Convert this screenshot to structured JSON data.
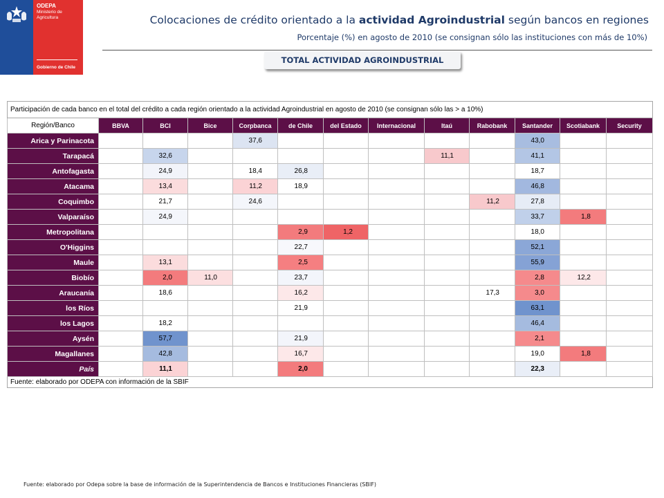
{
  "logo": {
    "name": "ODEPA",
    "ministry": "Ministerio de Agricultura",
    "government": "Gobierno de Chile"
  },
  "header": {
    "title_pre": "Colocaciones de crédito orientado a la ",
    "title_bold": "actividad Agroindustrial",
    "title_post": " según bancos en regiones",
    "subtitle": "Porcentaje (%) en agosto de 2010 (se consignan sólo las instituciones con más de 10%)",
    "tab": "TOTAL ACTIVIDAD AGROINDUSTRIAL"
  },
  "table": {
    "caption": "Participación de cada banco en el total del crédito a cada región orientado a la actividad Agroindustrial en agosto de 2010 (se consignan sólo las > a 10%)",
    "corner": "Región/Banco",
    "columns": [
      "BBVA",
      "BCI",
      "Bice",
      "Corpbanca",
      "de Chile",
      "del Estado",
      "Internacional",
      "Itaú",
      "Rabobank",
      "Santander",
      "Scotiabank",
      "Security"
    ],
    "rows": [
      {
        "region": "Arica y Parinacota",
        "values": [
          "",
          "",
          "",
          "37,6",
          "",
          "",
          "",
          "",
          "",
          "43,0",
          "",
          ""
        ]
      },
      {
        "region": "Tarapacá",
        "values": [
          "",
          "32,6",
          "",
          "",
          "",
          "",
          "",
          "11,1",
          "",
          "41,1",
          "",
          ""
        ]
      },
      {
        "region": "Antofagasta",
        "values": [
          "",
          "24,9",
          "",
          "18,4",
          "26,8",
          "",
          "",
          "",
          "",
          "18,7",
          "",
          ""
        ]
      },
      {
        "region": "Atacama",
        "values": [
          "",
          "13,4",
          "",
          "11,2",
          "18,9",
          "",
          "",
          "",
          "",
          "46,8",
          "",
          ""
        ]
      },
      {
        "region": "Coquimbo",
        "values": [
          "",
          "21,7",
          "",
          "24,6",
          "",
          "",
          "",
          "",
          "11,2",
          "27,8",
          "",
          ""
        ]
      },
      {
        "region": "Valparaíso",
        "values": [
          "",
          "24,9",
          "",
          "",
          "",
          "",
          "",
          "",
          "",
          "33,7",
          "1,8",
          ""
        ]
      },
      {
        "region": "Metropolitana",
        "values": [
          "",
          "",
          "",
          "",
          "2,9",
          "1,2",
          "",
          "",
          "",
          "18,0",
          "",
          ""
        ]
      },
      {
        "region": "O'Higgins",
        "values": [
          "",
          "",
          "",
          "",
          "22,7",
          "",
          "",
          "",
          "",
          "52,1",
          "",
          ""
        ]
      },
      {
        "region": "Maule",
        "values": [
          "",
          "13,1",
          "",
          "",
          "2,5",
          "",
          "",
          "",
          "",
          "55,9",
          "",
          ""
        ]
      },
      {
        "region": "Biobío",
        "values": [
          "",
          "2,0",
          "11,0",
          "",
          "23,7",
          "",
          "",
          "",
          "",
          "2,8",
          "12,2",
          ""
        ]
      },
      {
        "region": "Araucanía",
        "values": [
          "",
          "18,6",
          "",
          "",
          "16,2",
          "",
          "",
          "",
          "17,3",
          "3,0",
          "",
          ""
        ]
      },
      {
        "region": "los Ríos",
        "values": [
          "",
          "",
          "",
          "",
          "21,9",
          "",
          "",
          "",
          "",
          "63,1",
          "",
          ""
        ]
      },
      {
        "region": "los Lagos",
        "values": [
          "",
          "18,2",
          "",
          "",
          "",
          "",
          "",
          "",
          "",
          "46,4",
          "",
          ""
        ]
      },
      {
        "region": "Aysén",
        "values": [
          "",
          "57,7",
          "",
          "",
          "21,9",
          "",
          "",
          "",
          "",
          "2,1",
          "",
          ""
        ]
      },
      {
        "region": "Magallanes",
        "values": [
          "",
          "42,8",
          "",
          "",
          "16,7",
          "",
          "",
          "",
          "",
          "19,0",
          "1,8",
          ""
        ]
      },
      {
        "region": "País",
        "values": [
          "",
          "11,1",
          "",
          "",
          "2,0",
          "",
          "",
          "",
          "",
          "22,3",
          "",
          ""
        ]
      }
    ],
    "cell_colors": [
      [
        "#ffffff",
        "#ffffff",
        "#ffffff",
        "#dce4f2",
        "#ffffff",
        "#ffffff",
        "#ffffff",
        "#ffffff",
        "#ffffff",
        "#a8bde0",
        "#ffffff",
        "#ffffff"
      ],
      [
        "#ffffff",
        "#c7d5ec",
        "#ffffff",
        "#ffffff",
        "#ffffff",
        "#ffffff",
        "#ffffff",
        "#f8c9cc",
        "#ffffff",
        "#b3c6e5",
        "#ffffff",
        "#ffffff"
      ],
      [
        "#ffffff",
        "#f2f4fa",
        "#ffffff",
        "#ffffff",
        "#e9eef7",
        "#ffffff",
        "#ffffff",
        "#ffffff",
        "#ffffff",
        "#ffffff",
        "#ffffff",
        "#ffffff"
      ],
      [
        "#ffffff",
        "#fbdcdd",
        "#ffffff",
        "#fbd3d5",
        "#ffffff",
        "#ffffff",
        "#ffffff",
        "#ffffff",
        "#ffffff",
        "#a2b8df",
        "#ffffff",
        "#ffffff"
      ],
      [
        "#ffffff",
        "#ffffff",
        "#ffffff",
        "#f4f6fb",
        "#ffffff",
        "#ffffff",
        "#ffffff",
        "#ffffff",
        "#f8c9cc",
        "#e6ecf6",
        "#ffffff",
        "#ffffff"
      ],
      [
        "#ffffff",
        "#f4f6fb",
        "#ffffff",
        "#ffffff",
        "#ffffff",
        "#ffffff",
        "#ffffff",
        "#ffffff",
        "#ffffff",
        "#c0d0ea",
        "#f37b7d",
        "#ffffff"
      ],
      [
        "#ffffff",
        "#ffffff",
        "#ffffff",
        "#ffffff",
        "#f37b7d",
        "#ef6466",
        "#ffffff",
        "#ffffff",
        "#ffffff",
        "#ffffff",
        "#ffffff",
        "#ffffff"
      ],
      [
        "#ffffff",
        "#ffffff",
        "#ffffff",
        "#ffffff",
        "#f7f8fc",
        "#ffffff",
        "#ffffff",
        "#ffffff",
        "#ffffff",
        "#8ba7d7",
        "#ffffff",
        "#ffffff"
      ],
      [
        "#ffffff",
        "#fbdcdd",
        "#ffffff",
        "#ffffff",
        "#f57f81",
        "#ffffff",
        "#ffffff",
        "#ffffff",
        "#ffffff",
        "#85a2d5",
        "#ffffff",
        "#ffffff"
      ],
      [
        "#ffffff",
        "#f37b7d",
        "#fcdfe0",
        "#ffffff",
        "#f3f5fb",
        "#ffffff",
        "#ffffff",
        "#ffffff",
        "#ffffff",
        "#f58a8c",
        "#fde8e9",
        "#ffffff"
      ],
      [
        "#ffffff",
        "#ffffff",
        "#ffffff",
        "#ffffff",
        "#fde8e9",
        "#ffffff",
        "#ffffff",
        "#ffffff",
        "#ffffff",
        "#f58a8c",
        "#ffffff",
        "#ffffff"
      ],
      [
        "#ffffff",
        "#ffffff",
        "#ffffff",
        "#ffffff",
        "#ffffff",
        "#ffffff",
        "#ffffff",
        "#ffffff",
        "#ffffff",
        "#7093cd",
        "#ffffff",
        "#ffffff"
      ],
      [
        "#ffffff",
        "#ffffff",
        "#ffffff",
        "#ffffff",
        "#ffffff",
        "#ffffff",
        "#ffffff",
        "#ffffff",
        "#ffffff",
        "#a5bbdf",
        "#ffffff",
        "#ffffff"
      ],
      [
        "#ffffff",
        "#7093cd",
        "#ffffff",
        "#ffffff",
        "#f3f5fb",
        "#ffffff",
        "#ffffff",
        "#ffffff",
        "#ffffff",
        "#f58a8c",
        "#ffffff",
        "#ffffff"
      ],
      [
        "#ffffff",
        "#a5bbdf",
        "#ffffff",
        "#ffffff",
        "#fde8e9",
        "#ffffff",
        "#ffffff",
        "#ffffff",
        "#ffffff",
        "#ffffff",
        "#f37b7d",
        "#ffffff"
      ],
      [
        "#ffffff",
        "#fbd3d5",
        "#ffffff",
        "#ffffff",
        "#f37b7d",
        "#ffffff",
        "#ffffff",
        "#ffffff",
        "#ffffff",
        "#e9eef7",
        "#ffffff",
        "#ffffff"
      ]
    ],
    "source": "Fuente: elaborado por ODEPA con información de la SBIF"
  },
  "footer": "Fuente: elaborado por Odepa sobre la base de información de la Superintendencia de Bancos e Instituciones Financieras (SBIF)"
}
